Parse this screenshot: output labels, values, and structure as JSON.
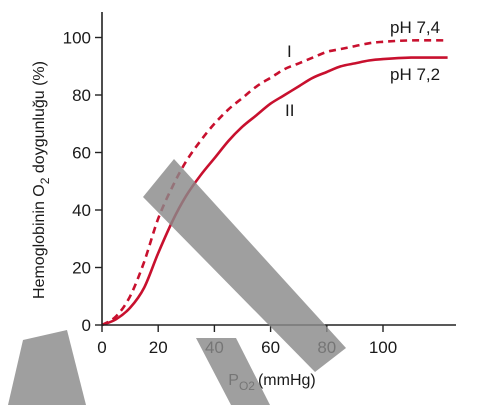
{
  "chart_data": {
    "type": "line",
    "x_axis": {
      "var": "P",
      "sub": "O2",
      "unit": "(mmHg)",
      "ticks": [
        0,
        20,
        40,
        60,
        80,
        100
      ],
      "range": [
        0,
        124
      ]
    },
    "y_axis": {
      "pre": "Hemoglobinin O",
      "sub": "2",
      "post": " doygunluğu (%)",
      "ticks": [
        0,
        20,
        40,
        60,
        80,
        100
      ],
      "range": [
        0,
        108
      ]
    },
    "series": [
      {
        "name": "pH 7,4",
        "roman": "I",
        "style": "dashed",
        "color": "#c8102e",
        "x": [
          0,
          5,
          10,
          15,
          20,
          25,
          30,
          35,
          40,
          45,
          50,
          55,
          60,
          65,
          70,
          75,
          80,
          85,
          90,
          95,
          100,
          110,
          123
        ],
        "y": [
          0,
          3,
          10,
          22,
          37,
          48,
          57,
          64,
          70,
          75,
          79,
          83,
          86,
          89,
          91,
          93,
          95,
          96,
          97,
          98,
          98.5,
          99,
          99
        ]
      },
      {
        "name": "pH 7,2",
        "roman": "II",
        "style": "solid",
        "color": "#c8102e",
        "x": [
          0,
          5,
          10,
          15,
          20,
          25,
          30,
          35,
          40,
          45,
          50,
          55,
          60,
          65,
          70,
          75,
          80,
          85,
          90,
          95,
          100,
          110,
          123
        ],
        "y": [
          0,
          2,
          6,
          13,
          25,
          36,
          45,
          52,
          58,
          64,
          69,
          73,
          77,
          80,
          83,
          86,
          88,
          90,
          91,
          92,
          92.5,
          93,
          93
        ]
      }
    ],
    "grid": false,
    "watermark_color": "#8a8a8a"
  }
}
